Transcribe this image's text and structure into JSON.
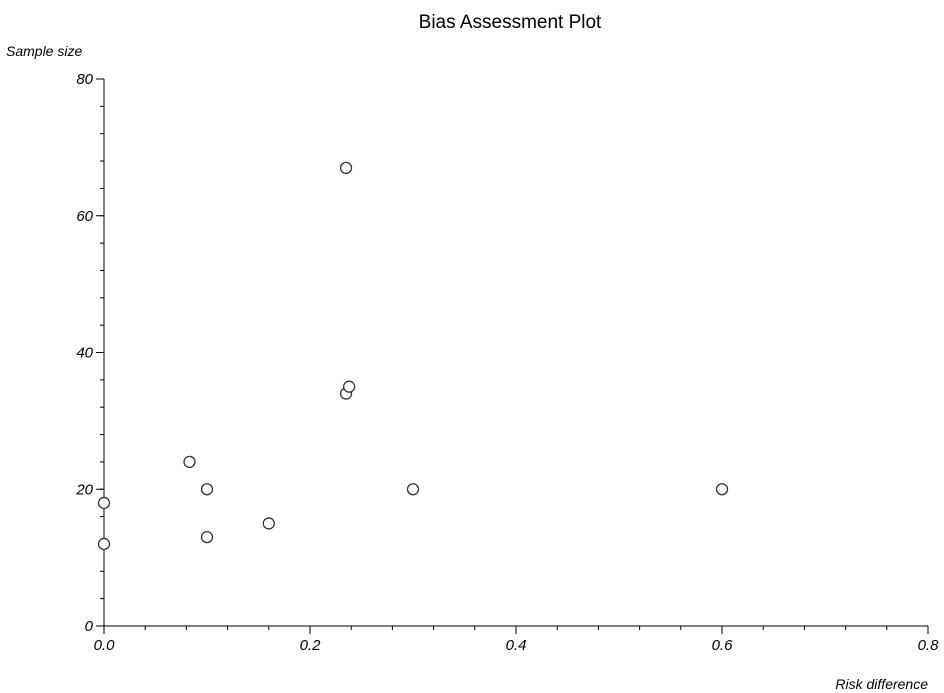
{
  "chart_data": {
    "type": "scatter",
    "title": "Bias Assessment Plot",
    "xlabel": "Risk difference",
    "ylabel": "Sample size",
    "xlim": [
      0,
      0.8
    ],
    "ylim": [
      0,
      80
    ],
    "xticks": [
      "0.0",
      "0.2",
      "0.4",
      "0.6",
      "0.8"
    ],
    "yticks": [
      "0",
      "20",
      "40",
      "60",
      "80"
    ],
    "x_major": [
      0,
      0.2,
      0.4,
      0.6,
      0.8
    ],
    "y_major": [
      0,
      20,
      40,
      60,
      80
    ],
    "x_minor_step": 0.04,
    "y_minor_step": 4,
    "grid": false,
    "points": [
      {
        "x": 0.0,
        "y": 18
      },
      {
        "x": 0.0,
        "y": 12
      },
      {
        "x": 0.083,
        "y": 24
      },
      {
        "x": 0.1,
        "y": 20
      },
      {
        "x": 0.1,
        "y": 13
      },
      {
        "x": 0.16,
        "y": 15
      },
      {
        "x": 0.235,
        "y": 67
      },
      {
        "x": 0.235,
        "y": 34
      },
      {
        "x": 0.238,
        "y": 35
      },
      {
        "x": 0.3,
        "y": 20
      },
      {
        "x": 0.6,
        "y": 20
      }
    ]
  }
}
